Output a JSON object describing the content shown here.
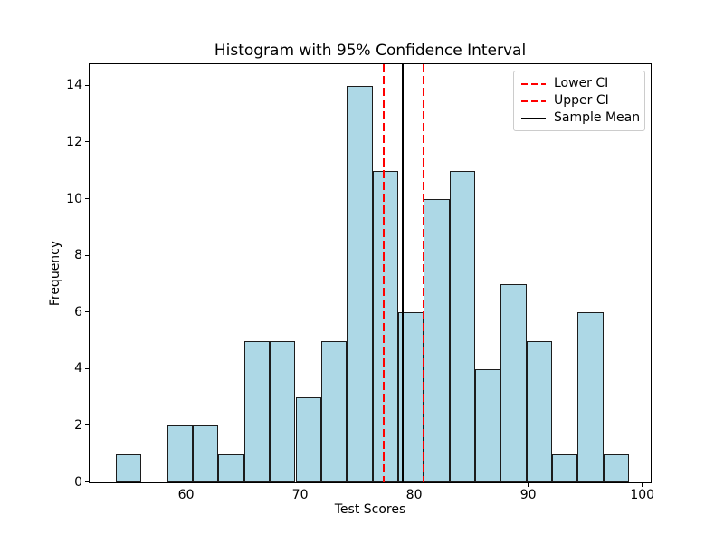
{
  "chart_data": {
    "type": "histogram",
    "title": "Histogram with 95% Confidence Interval",
    "xlabel": "Test Scores",
    "ylabel": "Frequency",
    "bin_edges": [
      53.8,
      56.05,
      58.3,
      60.55,
      62.8,
      65.05,
      67.3,
      69.55,
      71.8,
      74.05,
      76.3,
      78.55,
      80.8,
      83.05,
      85.3,
      87.55,
      89.8,
      92.05,
      94.3,
      96.55,
      98.8
    ],
    "counts": [
      1,
      0,
      2,
      2,
      1,
      5,
      5,
      3,
      5,
      14,
      11,
      6,
      10,
      11,
      4,
      7,
      5,
      1,
      6,
      1
    ],
    "total_samples": 100,
    "bar_fill": "#ADD8E6",
    "bar_edge": "#1c1c1c",
    "xticks": [
      60,
      70,
      80,
      90,
      100
    ],
    "yticks": [
      0,
      2,
      4,
      6,
      8,
      10,
      12,
      14
    ],
    "xlim": [
      51.5,
      100.7
    ],
    "ylim": [
      0,
      14.76
    ],
    "grid": false,
    "vlines": [
      {
        "name": "lower-ci",
        "label": "Lower CI",
        "value": 77.25,
        "color": "#ff0000",
        "style": "dashed"
      },
      {
        "name": "upper-ci",
        "label": "Upper CI",
        "value": 80.8,
        "color": "#ff0000",
        "style": "dashed"
      },
      {
        "name": "sample-mean",
        "label": "Sample Mean",
        "value": 78.93,
        "color": "#000000",
        "style": "solid"
      }
    ],
    "legend": {
      "position": "upper right",
      "items": [
        {
          "label": "Lower CI",
          "color": "#ff0000",
          "style": "dashed"
        },
        {
          "label": "Upper CI",
          "color": "#ff0000",
          "style": "dashed"
        },
        {
          "label": "Sample Mean",
          "color": "#000000",
          "style": "solid"
        }
      ]
    }
  }
}
